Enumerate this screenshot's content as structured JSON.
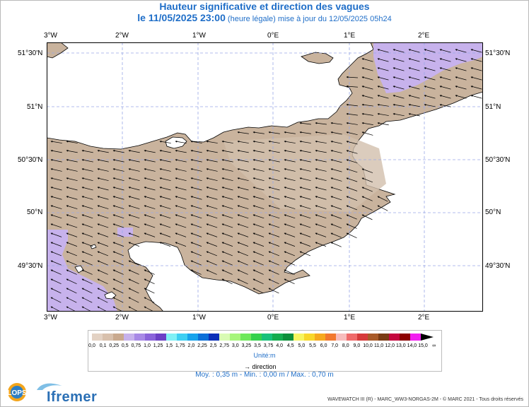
{
  "title": "Hauteur significative et direction des vagues",
  "subtitle_date": "le 11/05/2025 23:00",
  "subtitle_rest": "(heure légale) mise à jour du 12/05/2025 05h24",
  "lon_ticks": [
    "3°W",
    "2°W",
    "1°W",
    "0°E",
    "1°E",
    "2°E"
  ],
  "lat_ticks": [
    "51°30'N",
    "51°N",
    "50°30'N",
    "50°N",
    "49°30'N"
  ],
  "legend": {
    "labels": [
      "0,0",
      "0,1",
      "0,25",
      "0,5",
      "0,75",
      "1,0",
      "1,25",
      "1,5",
      "1,75",
      "2,0",
      "2,25",
      "2,5",
      "2,75",
      "3,0",
      "3,25",
      "3,5",
      "3,75",
      "4,0",
      "4,5",
      "5,0",
      "5,5",
      "6,0",
      "7,0",
      "8,0",
      "9,0",
      "10,0",
      "11,0",
      "12,0",
      "13,0",
      "14,0",
      "15,0",
      "∞"
    ],
    "colors": [
      "#e3d2c4",
      "#d8c0ac",
      "#c9a98e",
      "#c7b2ec",
      "#a889e6",
      "#8a63da",
      "#6b3fc5",
      "#7ff0f5",
      "#3dcff2",
      "#16a3ec",
      "#0b6fd8",
      "#0b2fb8",
      "#d9fbb4",
      "#a6f57a",
      "#6ee85a",
      "#34d14c",
      "#17c17a",
      "#14ac4e",
      "#0d8f3a",
      "#f6f55e",
      "#f8d72a",
      "#f6a91e",
      "#f2782e",
      "#f7bcbc",
      "#ef6a6a",
      "#d63a3a",
      "#a85a28",
      "#7a3b14",
      "#c4063e",
      "#8c0000",
      "#f21ef0",
      "#b5168a"
    ],
    "unit": "Unité:m",
    "direction_label": "direction"
  },
  "stats": "Moy. : 0,35 m   -   Min. : 0,00 m / Max. : 0,70 m",
  "footer": "WAVEWATCH III (R) - MARC_WW3-NORGAS-2M - © MARC 2021 - Tous droits réservés",
  "logos": {
    "left": "LOPS",
    "right": "Ifremer"
  },
  "colors": {
    "sea": "#c9b39d",
    "calm_sea": "#c7b2ec",
    "land": "#ffffff",
    "coast": "#000000",
    "title": "#1f6ec8",
    "grid": "#9aa9e6"
  },
  "map": {
    "arrow_direction": "mostly westward, turning south-westward along the French coast",
    "grid": true
  }
}
